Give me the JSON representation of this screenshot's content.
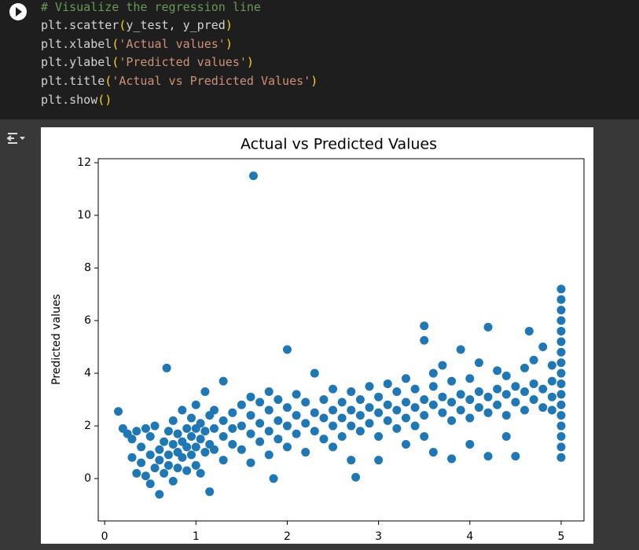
{
  "code": {
    "lines": [
      [
        "# Visualize the regression line"
      ],
      [
        "plt.scatter",
        "(",
        "y_test, y_pred",
        ")"
      ],
      [
        "plt.xlabel",
        "(",
        "'Actual values'",
        ")"
      ],
      [
        "plt.ylabel",
        "(",
        "'Predicted values'",
        ")"
      ],
      [
        "plt.title",
        "(",
        "'Actual vs Predicted Values'",
        ")"
      ],
      [
        "plt.show",
        "()"
      ]
    ]
  },
  "chart_data": {
    "type": "scatter",
    "title": "Actual vs Predicted Values",
    "ylabel": "Predicted values",
    "color": "#1f77b4",
    "xlim": [
      -0.07,
      5.25
    ],
    "ylim": [
      -1.61,
      12.15
    ],
    "xticks": [
      0,
      1,
      2,
      3,
      4,
      5
    ],
    "yticks": [
      0,
      2,
      4,
      6,
      8,
      10,
      12
    ],
    "x": [
      0.15,
      0.2,
      0.25,
      0.3,
      0.3,
      0.35,
      0.35,
      0.4,
      0.4,
      0.45,
      0.45,
      0.5,
      0.5,
      0.5,
      0.55,
      0.55,
      0.6,
      0.6,
      0.6,
      0.65,
      0.65,
      0.68,
      0.7,
      0.7,
      0.7,
      0.75,
      0.75,
      0.75,
      0.8,
      0.8,
      0.8,
      0.85,
      0.85,
      0.85,
      0.9,
      0.9,
      0.9,
      0.95,
      0.95,
      0.95,
      1.0,
      1.0,
      1.0,
      1.0,
      1.05,
      1.05,
      1.05,
      1.1,
      1.1,
      1.1,
      1.15,
      1.15,
      1.15,
      1.2,
      1.2,
      1.2,
      1.3,
      1.3,
      1.3,
      1.3,
      1.4,
      1.4,
      1.4,
      1.5,
      1.5,
      1.5,
      1.6,
      1.6,
      1.6,
      1.6,
      1.63,
      1.7,
      1.7,
      1.7,
      1.8,
      1.8,
      1.8,
      1.8,
      1.85,
      1.9,
      1.9,
      1.9,
      2.0,
      2.0,
      2.0,
      2.0,
      2.1,
      2.1,
      2.1,
      2.2,
      2.2,
      2.2,
      2.3,
      2.3,
      2.3,
      2.4,
      2.4,
      2.4,
      2.5,
      2.5,
      2.5,
      2.5,
      2.6,
      2.6,
      2.6,
      2.7,
      2.7,
      2.7,
      2.7,
      2.75,
      2.8,
      2.8,
      2.8,
      2.9,
      2.9,
      2.9,
      3.0,
      3.0,
      3.0,
      3.0,
      3.1,
      3.1,
      3.1,
      3.2,
      3.2,
      3.2,
      3.3,
      3.3,
      3.3,
      3.3,
      3.4,
      3.4,
      3.4,
      3.5,
      3.5,
      3.5,
      3.5,
      3.5,
      3.6,
      3.6,
      3.6,
      3.6,
      3.7,
      3.7,
      3.7,
      3.8,
      3.8,
      3.8,
      3.8,
      3.9,
      3.9,
      3.9,
      4.0,
      4.0,
      4.0,
      4.0,
      4.1,
      4.1,
      4.1,
      4.2,
      4.2,
      4.2,
      4.2,
      4.3,
      4.3,
      4.3,
      4.4,
      4.4,
      4.4,
      4.4,
      4.5,
      4.5,
      4.5,
      4.6,
      4.6,
      4.6,
      4.65,
      4.7,
      4.7,
      4.7,
      4.8,
      4.8,
      4.8,
      4.9,
      4.9,
      4.9,
      4.9,
      5.0,
      5.0,
      5.0,
      5.0,
      5.0,
      5.0,
      5.0,
      5.0,
      5.0,
      5.0,
      5.0,
      5.0,
      5.0,
      5.0,
      5.0,
      5.0,
      5.0
    ],
    "values": [
      2.55,
      1.9,
      1.7,
      0.8,
      1.5,
      0.2,
      1.8,
      0.6,
      1.2,
      1.9,
      0.1,
      0.9,
      1.6,
      -0.2,
      0.4,
      2.0,
      1.1,
      0.7,
      -0.6,
      1.4,
      0.2,
      4.2,
      0.9,
      1.8,
      0.5,
      1.3,
      2.2,
      -0.1,
      1.0,
      1.7,
      0.4,
      2.6,
      0.8,
      1.4,
      1.9,
      0.3,
      1.2,
      1.6,
      2.3,
      0.9,
      1.2,
      1.9,
      0.5,
      2.8,
      1.5,
      0.2,
      2.1,
      1.8,
      1.0,
      3.3,
      2.4,
      1.3,
      -0.5,
      1.1,
      1.9,
      2.6,
      1.6,
      2.2,
      0.7,
      3.7,
      1.3,
      2.5,
      1.9,
      2.0,
      1.1,
      2.8,
      1.7,
      2.4,
      0.6,
      3.1,
      11.5,
      2.1,
      1.4,
      2.9,
      1.8,
      2.6,
      0.9,
      3.3,
      0.0,
      2.2,
      1.5,
      3.0,
      2.0,
      2.7,
      1.2,
      4.9,
      2.4,
      1.7,
      3.2,
      2.1,
      2.9,
      1.0,
      2.5,
      1.8,
      4.0,
      2.3,
      3.0,
      1.5,
      2.6,
      2.0,
      3.4,
      1.2,
      2.3,
      2.9,
      1.6,
      2.6,
      2.0,
      3.3,
      0.7,
      0.05,
      2.4,
      3.0,
      1.8,
      2.7,
      2.1,
      3.5,
      2.5,
      3.1,
      1.6,
      0.7,
      2.8,
      2.2,
      3.6,
      2.6,
      3.3,
      1.9,
      2.9,
      2.3,
      3.8,
      1.3,
      2.7,
      3.4,
      2.0,
      3.0,
      5.8,
      5.25,
      2.4,
      1.6,
      2.8,
      3.5,
      1.0,
      4.0,
      3.1,
      2.5,
      4.3,
      2.9,
      3.7,
      0.75,
      2.2,
      3.2,
      2.6,
      4.9,
      3.0,
      3.8,
      2.3,
      1.3,
      3.3,
      2.7,
      4.4,
      3.1,
      5.75,
      0.85,
      2.5,
      3.4,
      2.8,
      4.1,
      3.2,
      3.9,
      2.4,
      1.6,
      3.5,
      0.85,
      2.9,
      3.3,
      4.2,
      2.6,
      5.6,
      3.6,
      3.0,
      4.5,
      3.4,
      2.7,
      5.0,
      3.7,
      3.1,
      4.3,
      2.6,
      0.8,
      1.2,
      1.6,
      2.0,
      2.4,
      2.8,
      3.2,
      3.6,
      4.0,
      4.4,
      4.8,
      5.2,
      5.6,
      6.0,
      6.4,
      6.8,
      7.2
    ]
  }
}
